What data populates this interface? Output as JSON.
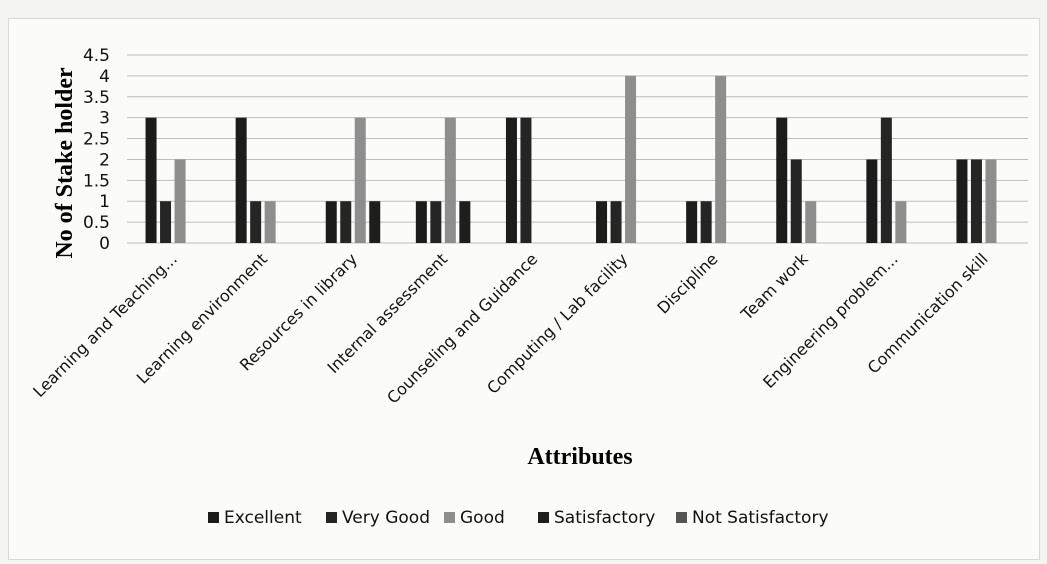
{
  "chart_data": {
    "type": "bar",
    "title": "",
    "xlabel": "Attributes",
    "ylabel": "No of Stake holder",
    "ylim": [
      0,
      4.5
    ],
    "yticks": [
      "0",
      "0.5",
      "1",
      "1.5",
      "2",
      "2.5",
      "3",
      "3.5",
      "4",
      "4.5"
    ],
    "grid": true,
    "legend_position": "bottom",
    "categories": [
      "Learning and Teaching...",
      "Learning environment",
      "Resources in library",
      "Internal assessment",
      "Counseling and Guidance",
      "Computing / Lab facility",
      "Discipline",
      "Team work",
      "Engineering problem...",
      "Communication skill"
    ],
    "series": [
      {
        "name": "Excellent",
        "color": "#1c1c1c",
        "values": [
          3,
          3,
          1,
          1,
          3,
          1,
          1,
          3,
          2,
          2
        ]
      },
      {
        "name": "Very Good",
        "color": "#252525",
        "values": [
          1,
          1,
          1,
          1,
          3,
          1,
          1,
          2,
          3,
          2
        ]
      },
      {
        "name": "Good",
        "color": "#8e8e8e",
        "values": [
          2,
          1,
          3,
          3,
          0,
          4,
          4,
          1,
          1,
          2
        ]
      },
      {
        "name": "Satisfactory",
        "color": "#1e1e1e",
        "values": [
          0,
          0,
          1,
          1,
          0,
          0,
          0,
          0,
          0,
          0
        ]
      },
      {
        "name": "Not Satisfactory",
        "color": "#555555",
        "values": [
          0,
          0,
          0,
          0,
          0,
          0,
          0,
          0,
          0,
          0
        ]
      }
    ]
  }
}
